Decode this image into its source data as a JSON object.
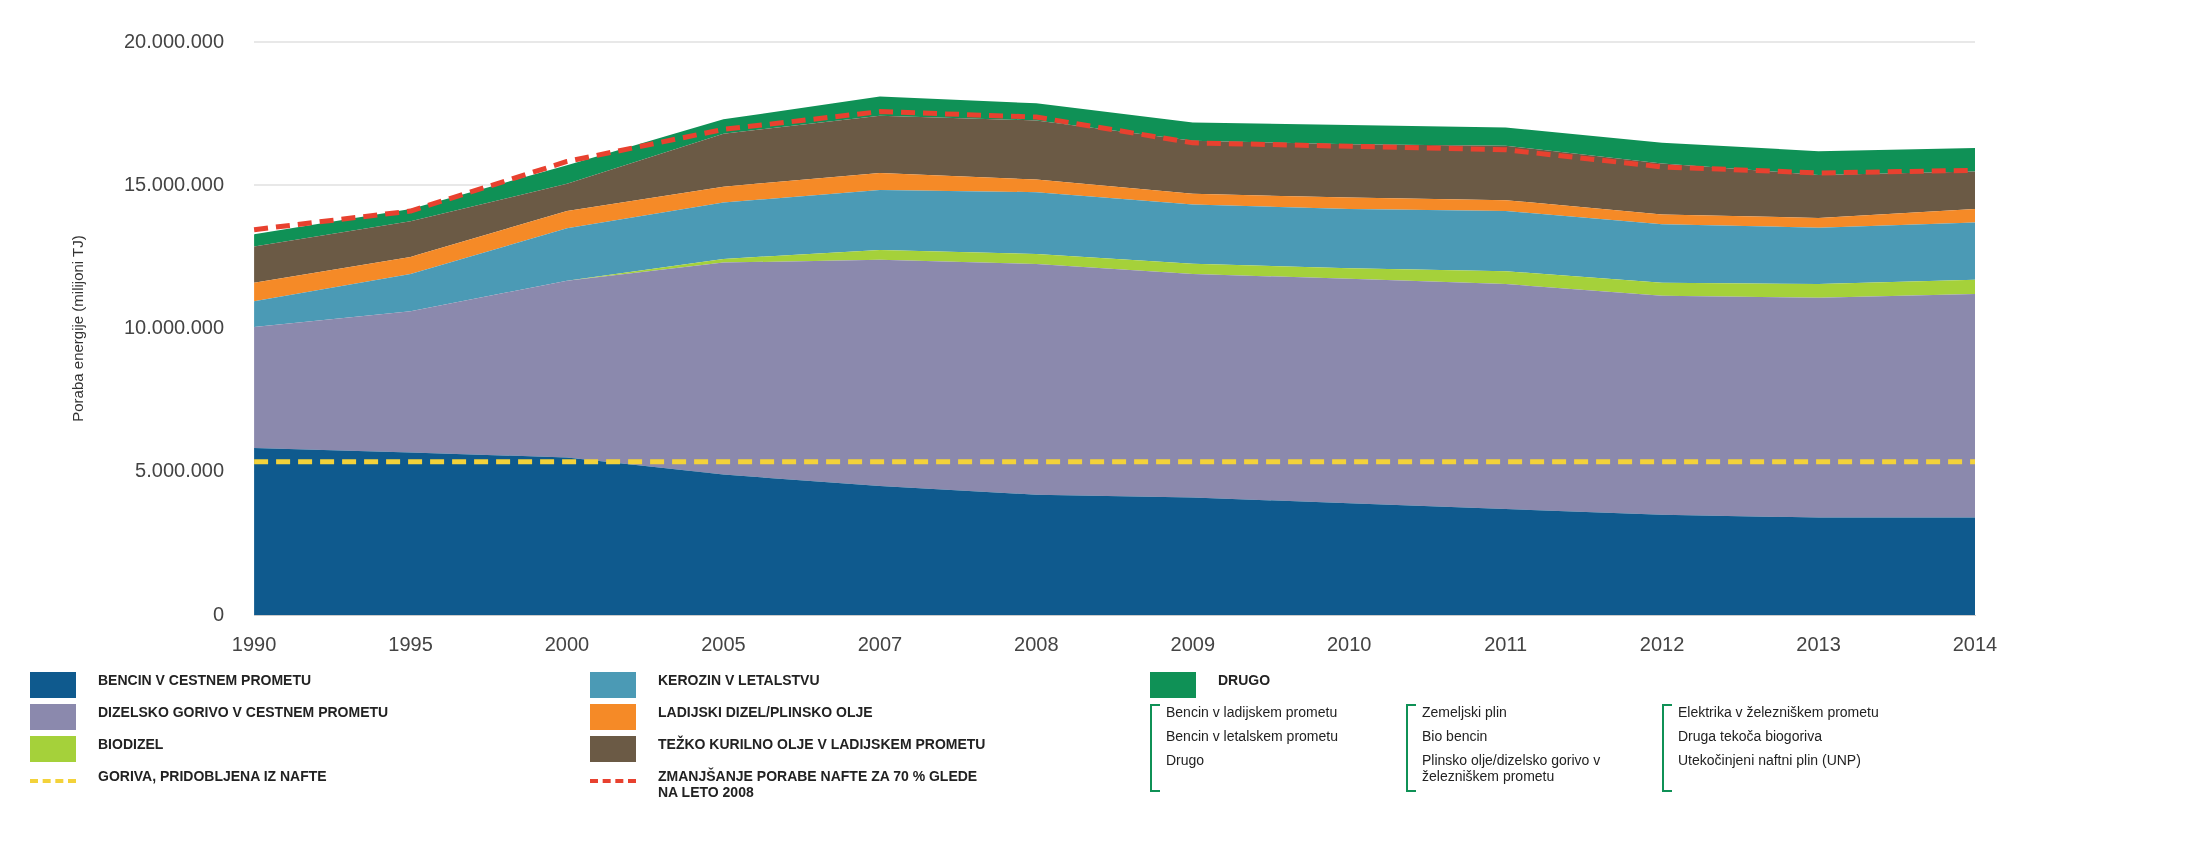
{
  "chart_data": {
    "type": "area",
    "stacked": true,
    "ylabel": "Poraba energije (milijoni TJ)",
    "categories": [
      "1990",
      "1995",
      "2000",
      "2005",
      "2007",
      "2008",
      "2009",
      "2010",
      "2011",
      "2012",
      "2013",
      "2014"
    ],
    "ylim": [
      0,
      20000000
    ],
    "yticks": [
      {
        "value": 0,
        "label": "0"
      },
      {
        "value": 5000000,
        "label": "5.000.000"
      },
      {
        "value": 10000000,
        "label": "10.000.000"
      },
      {
        "value": 15000000,
        "label": "15.000.000"
      },
      {
        "value": 20000000,
        "label": "20.000.000"
      }
    ],
    "grid": "y",
    "legend": "bottom",
    "marker": "none",
    "series": [
      {
        "name": "BENCIN V CESTNEM PROMETU",
        "color": "#0f5a8e",
        "values": [
          5830000,
          5670000,
          5500000,
          4900000,
          4500000,
          4200000,
          4100000,
          3900000,
          3700000,
          3500000,
          3400000,
          3400000
        ]
      },
      {
        "name": "DIZELSKO GORIVO V CESTNEM PROMETU",
        "color": "#8b89ad",
        "values": [
          4220000,
          4930000,
          6170000,
          7400000,
          7900000,
          8050000,
          7800000,
          7840000,
          7850000,
          7640000,
          7670000,
          7800000
        ]
      },
      {
        "name": "BIODIZEL",
        "color": "#a5d13a",
        "values": [
          0,
          0,
          0,
          130000,
          340000,
          350000,
          360000,
          360000,
          450000,
          460000,
          480000,
          500000
        ]
      },
      {
        "name": "KEROZIN V LETALSTVU",
        "color": "#4b9ab5",
        "values": [
          900000,
          1300000,
          1830000,
          1970000,
          2090000,
          2160000,
          2070000,
          2070000,
          2100000,
          2040000,
          1970000,
          2000000
        ]
      },
      {
        "name": "LADIJSKI DIZEL/PLINSKO OLJE",
        "color": "#f58a27",
        "values": [
          650000,
          600000,
          600000,
          550000,
          600000,
          440000,
          370000,
          400000,
          380000,
          340000,
          340000,
          470000
        ]
      },
      {
        "name": "TEŽKO KURILNO OLJE V LADIJSKEM PROMETU",
        "color": "#6b5a45",
        "values": [
          1260000,
          1240000,
          950000,
          1850000,
          2000000,
          2060000,
          1850000,
          1860000,
          1900000,
          1780000,
          1500000,
          1310000
        ]
      },
      {
        "name": "DRUGO",
        "color": "#0f9156",
        "values": [
          430000,
          430000,
          650000,
          500000,
          670000,
          600000,
          640000,
          670000,
          640000,
          720000,
          830000,
          820000
        ]
      },
      {
        "name": "GORIVA, PRIDOBLJENA IZ NAFTE",
        "type": "line",
        "line_style": "dashed",
        "color": "#f3d23a",
        "values": [
          5350000,
          5350000,
          5350000,
          5350000,
          5350000,
          5350000,
          5350000,
          5350000,
          5350000,
          5350000,
          5350000,
          5350000
        ]
      },
      {
        "name": "ZMANJŠANJE PORABE NAFTE ZA 70 % GLEDE NA LETO 2008",
        "type": "line",
        "line_style": "dashed",
        "color": "#e8412f",
        "values": [
          13450000,
          14100000,
          15830000,
          16950000,
          17570000,
          17380000,
          16480000,
          16360000,
          16240000,
          15640000,
          15430000,
          15520000
        ]
      }
    ],
    "annotations": [
      "Bencin v ladijskem prometu",
      "Bencin v letalskem prometu",
      "Drugo",
      "Zemeljski plin",
      "Bio bencin",
      "Plinsko olje/dizelsko gorivo v železniškem prometu",
      "Elektrika v železniškem prometu",
      "Druga tekoča biogoriva",
      "Utekočinjeni naftni plin (UNP)"
    ]
  }
}
